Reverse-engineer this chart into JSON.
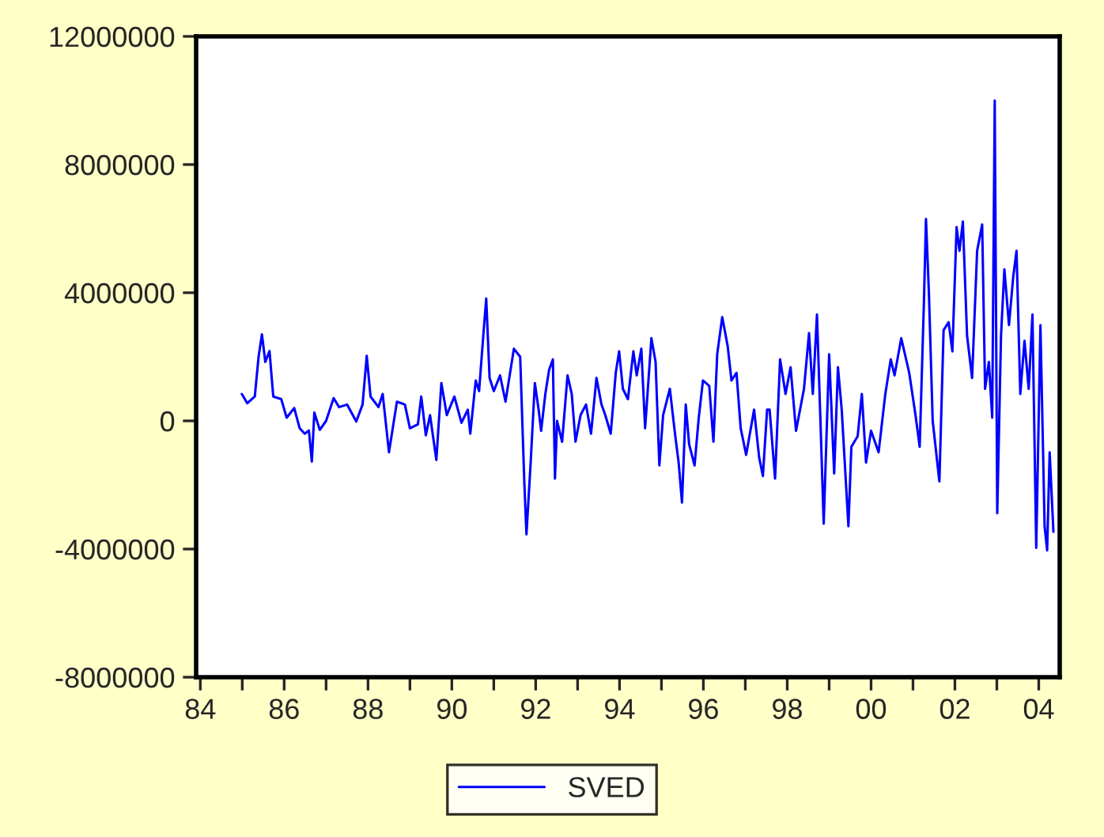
{
  "chart_data": {
    "type": "line",
    "x": [
      1984.99,
      1985.12,
      1985.3,
      1985.39,
      1985.47,
      1985.55,
      1985.65,
      1985.74,
      1985.93,
      1986.06,
      1986.24,
      1986.37,
      1986.49,
      1986.59,
      1986.66,
      1986.72,
      1986.85,
      1987.0,
      1987.18,
      1987.31,
      1987.5,
      1987.72,
      1987.87,
      1987.97,
      1988.06,
      1988.25,
      1988.35,
      1988.5,
      1988.69,
      1988.88,
      1989.0,
      1989.19,
      1989.27,
      1989.38,
      1989.48,
      1989.63,
      1989.75,
      1989.88,
      1990.06,
      1990.23,
      1990.38,
      1990.44,
      1990.57,
      1990.65,
      1990.75,
      1990.82,
      1990.9,
      1991.0,
      1991.15,
      1991.28,
      1991.48,
      1991.63,
      1991.73,
      1991.78,
      1991.88,
      1991.98,
      1992.07,
      1992.13,
      1992.23,
      1992.32,
      1992.41,
      1992.46,
      1992.51,
      1992.63,
      1992.76,
      1992.86,
      1992.95,
      1993.07,
      1993.2,
      1993.32,
      1993.45,
      1993.57,
      1993.66,
      1993.79,
      1993.91,
      1993.99,
      1994.08,
      1994.2,
      1994.33,
      1994.41,
      1994.52,
      1994.61,
      1994.76,
      1994.86,
      1994.95,
      1995.04,
      1995.2,
      1995.33,
      1995.41,
      1995.49,
      1995.58,
      1995.66,
      1995.79,
      1995.89,
      1995.99,
      1996.14,
      1996.24,
      1996.33,
      1996.45,
      1996.58,
      1996.67,
      1996.79,
      1996.89,
      1997.02,
      1997.21,
      1997.33,
      1997.42,
      1997.52,
      1997.58,
      1997.71,
      1997.83,
      1997.96,
      1998.08,
      1998.21,
      1998.4,
      1998.52,
      1998.61,
      1998.71,
      1998.8,
      1998.87,
      1999.0,
      1999.12,
      1999.21,
      1999.3,
      1999.46,
      1999.53,
      1999.68,
      1999.78,
      1999.88,
      2000.0,
      2000.18,
      2000.34,
      2000.47,
      2000.56,
      2000.72,
      2000.91,
      2001.06,
      2001.16,
      2001.26,
      2001.31,
      2001.38,
      2001.47,
      2001.63,
      2001.73,
      2001.85,
      2001.94,
      2002.04,
      2002.11,
      2002.19,
      2002.29,
      2002.41,
      2002.53,
      2002.65,
      2002.72,
      2002.81,
      2002.89,
      2002.95,
      2003.01,
      2003.1,
      2003.18,
      2003.29,
      2003.39,
      2003.47,
      2003.56,
      2003.66,
      2003.76,
      2003.85,
      2003.94,
      2004.04,
      2004.14,
      2004.2,
      2004.26,
      2004.35
    ],
    "series": [
      {
        "name": "SVED",
        "color": "#0000ff",
        "values": [
          840000,
          550000,
          760000,
          2000000,
          2700000,
          1840000,
          2180000,
          760000,
          680000,
          100000,
          400000,
          -230000,
          -400000,
          -300000,
          -1270000,
          260000,
          -280000,
          0,
          710000,
          430000,
          510000,
          -20000,
          510000,
          2030000,
          760000,
          430000,
          840000,
          -980000,
          600000,
          510000,
          -230000,
          -110000,
          760000,
          -450000,
          180000,
          -1220000,
          1180000,
          180000,
          760000,
          -60000,
          350000,
          -400000,
          1260000,
          930000,
          2660000,
          3820000,
          1340000,
          930000,
          1420000,
          600000,
          2250000,
          2000000,
          -1970000,
          -3540000,
          -1300000,
          1180000,
          350000,
          -310000,
          840000,
          1590000,
          1920000,
          -1800000,
          0,
          -650000,
          1420000,
          840000,
          -650000,
          180000,
          510000,
          -400000,
          1340000,
          510000,
          180000,
          -400000,
          1500000,
          2170000,
          1000000,
          680000,
          2170000,
          1420000,
          2250000,
          -230000,
          2580000,
          1840000,
          -1390000,
          180000,
          1000000,
          -480000,
          -1300000,
          -2550000,
          510000,
          -730000,
          -1390000,
          100000,
          1260000,
          1090000,
          -650000,
          2080000,
          3240000,
          2330000,
          1260000,
          1500000,
          -230000,
          -1060000,
          350000,
          -1140000,
          -1720000,
          350000,
          350000,
          -1800000,
          1920000,
          840000,
          1670000,
          -310000,
          1000000,
          2740000,
          840000,
          3320000,
          -310000,
          -3210000,
          2080000,
          -1640000,
          1670000,
          350000,
          -3290000,
          -810000,
          -480000,
          840000,
          -1300000,
          -310000,
          -980000,
          840000,
          1920000,
          1420000,
          2580000,
          1500000,
          180000,
          -810000,
          3660000,
          6300000,
          3990000,
          0,
          -1890000,
          2830000,
          3080000,
          2170000,
          6050000,
          5310000,
          6220000,
          2660000,
          1340000,
          5310000,
          6130000,
          1000000,
          1840000,
          100000,
          10000000,
          -2880000,
          2660000,
          4730000,
          2990000,
          4480000,
          5310000,
          840000,
          2500000,
          1000000,
          3320000,
          -3960000,
          2990000,
          -3290000,
          -4040000,
          -980000,
          -3460000
        ]
      }
    ],
    "xlim": [
      1983.9,
      2004.5
    ],
    "xticks": [
      {
        "value": 1984,
        "label": "84"
      },
      {
        "value": 1985,
        "label": null
      },
      {
        "value": 1986,
        "label": "86"
      },
      {
        "value": 1987,
        "label": null
      },
      {
        "value": 1988,
        "label": "88"
      },
      {
        "value": 1989,
        "label": null
      },
      {
        "value": 1990,
        "label": "90"
      },
      {
        "value": 1991,
        "label": null
      },
      {
        "value": 1992,
        "label": "92"
      },
      {
        "value": 1993,
        "label": null
      },
      {
        "value": 1994,
        "label": "94"
      },
      {
        "value": 1995,
        "label": null
      },
      {
        "value": 1996,
        "label": "96"
      },
      {
        "value": 1997,
        "label": null
      },
      {
        "value": 1998,
        "label": "98"
      },
      {
        "value": 1999,
        "label": null
      },
      {
        "value": 2000,
        "label": "00"
      },
      {
        "value": 2001,
        "label": null
      },
      {
        "value": 2002,
        "label": "02"
      },
      {
        "value": 2003,
        "label": null
      },
      {
        "value": 2004,
        "label": "04"
      }
    ],
    "ylim": [
      -8000000,
      12000000
    ],
    "yticks": [
      -8000000,
      -4000000,
      0,
      4000000,
      8000000,
      12000000
    ],
    "grid": false,
    "legend": "bottom",
    "marker": "none",
    "line_style": "solid"
  }
}
